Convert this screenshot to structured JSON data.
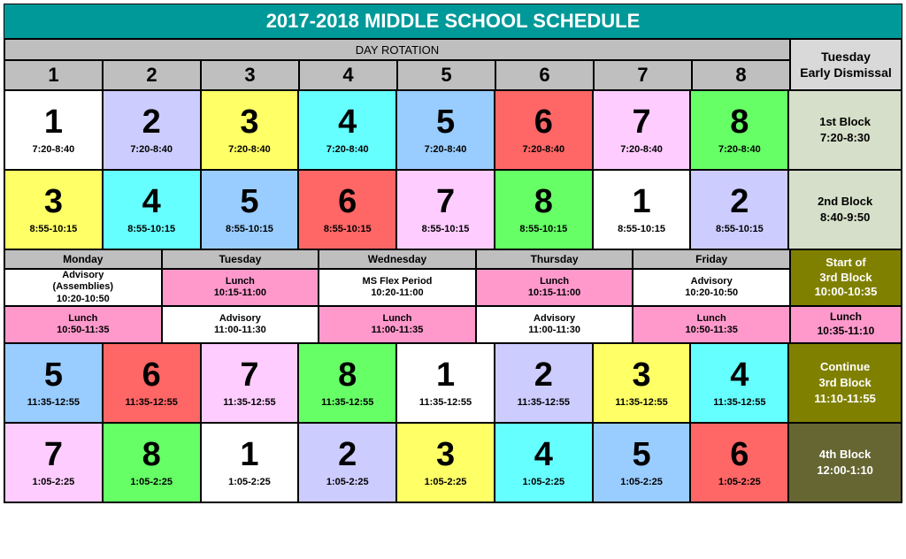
{
  "title": "2017-2018 MIDDLE SCHOOL SCHEDULE",
  "colors": {
    "teal": "#009999",
    "headerGray": "#bfbfbf",
    "lightGray": "#d9d9d9",
    "blockGray": "#e6e6e6",
    "white": "#ffffff",
    "yellow": "#ffff66",
    "lavender": "#ccccff",
    "lightBlue": "#99ccff",
    "cyan": "#66ffff",
    "coral": "#ff6666",
    "lightPink": "#ffccff",
    "green": "#66ff66",
    "pink": "#ff99cc",
    "olive": "#808000",
    "oliveDark": "#666633",
    "greenGray": "#d6dfc9"
  },
  "dayRotationLabel": "DAY ROTATION",
  "dayHeaders": [
    "1",
    "2",
    "3",
    "4",
    "5",
    "6",
    "7",
    "8"
  ],
  "tuesdayHeader": [
    "Tuesday",
    "Early Dismissal"
  ],
  "row1": {
    "cells": [
      {
        "num": "1",
        "time": "7:20-8:40",
        "bg": "white"
      },
      {
        "num": "2",
        "time": "7:20-8:40",
        "bg": "lavender"
      },
      {
        "num": "3",
        "time": "7:20-8:40",
        "bg": "yellow"
      },
      {
        "num": "4",
        "time": "7:20-8:40",
        "bg": "cyan"
      },
      {
        "num": "5",
        "time": "7:20-8:40",
        "bg": "lightBlue"
      },
      {
        "num": "6",
        "time": "7:20-8:40",
        "bg": "coral"
      },
      {
        "num": "7",
        "time": "7:20-8:40",
        "bg": "lightPink"
      },
      {
        "num": "8",
        "time": "7:20-8:40",
        "bg": "green"
      }
    ],
    "side": {
      "l1": "1st Block",
      "l2": "7:20-8:30",
      "bg": "greenGray"
    }
  },
  "row2": {
    "cells": [
      {
        "num": "3",
        "time": "8:55-10:15",
        "bg": "yellow"
      },
      {
        "num": "4",
        "time": "8:55-10:15",
        "bg": "cyan"
      },
      {
        "num": "5",
        "time": "8:55-10:15",
        "bg": "lightBlue"
      },
      {
        "num": "6",
        "time": "8:55-10:15",
        "bg": "coral"
      },
      {
        "num": "7",
        "time": "8:55-10:15",
        "bg": "lightPink"
      },
      {
        "num": "8",
        "time": "8:55-10:15",
        "bg": "green"
      },
      {
        "num": "1",
        "time": "8:55-10:15",
        "bg": "white"
      },
      {
        "num": "2",
        "time": "8:55-10:15",
        "bg": "lavender"
      }
    ],
    "side": {
      "l1": "2nd Block",
      "l2": "8:40-9:50",
      "bg": "greenGray"
    }
  },
  "weekdays": [
    "Monday",
    "Tuesday",
    "Wednesday",
    "Thursday",
    "Friday"
  ],
  "midRow1": [
    {
      "l1": "Advisory",
      "l2": "(Assemblies)",
      "l3": "10:20-10:50",
      "bg": "white"
    },
    {
      "l1": "Lunch",
      "l2": "10:15-11:00",
      "bg": "pink"
    },
    {
      "l1": "MS Flex Period",
      "l2": "10:20-11:00",
      "bg": "white"
    },
    {
      "l1": "Lunch",
      "l2": "10:15-11:00",
      "bg": "pink"
    },
    {
      "l1": "Advisory",
      "l2": "10:20-10:50",
      "bg": "white"
    }
  ],
  "midSide1": {
    "l1": "Start of",
    "l2": "3rd Block",
    "l3": "10:00-10:35",
    "bg": "olive"
  },
  "midRow2": [
    {
      "l1": "Lunch",
      "l2": "10:50-11:35",
      "bg": "pink"
    },
    {
      "l1": "Advisory",
      "l2": "11:00-11:30",
      "bg": "white"
    },
    {
      "l1": "Lunch",
      "l2": "11:00-11:35",
      "bg": "pink"
    },
    {
      "l1": "Advisory",
      "l2": "11:00-11:30",
      "bg": "white"
    },
    {
      "l1": "Lunch",
      "l2": "10:50-11:35",
      "bg": "pink"
    }
  ],
  "midSide2": {
    "l1": "Lunch",
    "l2": "10:35-11:10",
    "bg": "pink"
  },
  "row3": {
    "cells": [
      {
        "num": "5",
        "time": "11:35-12:55",
        "bg": "lightBlue"
      },
      {
        "num": "6",
        "time": "11:35-12:55",
        "bg": "coral"
      },
      {
        "num": "7",
        "time": "11:35-12:55",
        "bg": "lightPink"
      },
      {
        "num": "8",
        "time": "11:35-12:55",
        "bg": "green"
      },
      {
        "num": "1",
        "time": "11:35-12:55",
        "bg": "white"
      },
      {
        "num": "2",
        "time": "11:35-12:55",
        "bg": "lavender"
      },
      {
        "num": "3",
        "time": "11:35-12:55",
        "bg": "yellow"
      },
      {
        "num": "4",
        "time": "11:35-12:55",
        "bg": "cyan"
      }
    ],
    "side": {
      "l1": "Continue",
      "l2": "3rd Block",
      "l3": "11:10-11:55",
      "bg": "olive",
      "fg": "#ffffff"
    }
  },
  "row4": {
    "cells": [
      {
        "num": "7",
        "time": "1:05-2:25",
        "bg": "lightPink"
      },
      {
        "num": "8",
        "time": "1:05-2:25",
        "bg": "green"
      },
      {
        "num": "1",
        "time": "1:05-2:25",
        "bg": "white"
      },
      {
        "num": "2",
        "time": "1:05-2:25",
        "bg": "lavender"
      },
      {
        "num": "3",
        "time": "1:05-2:25",
        "bg": "yellow"
      },
      {
        "num": "4",
        "time": "1:05-2:25",
        "bg": "cyan"
      },
      {
        "num": "5",
        "time": "1:05-2:25",
        "bg": "lightBlue"
      },
      {
        "num": "6",
        "time": "1:05-2:25",
        "bg": "coral"
      }
    ],
    "side": {
      "l1": "4th Block",
      "l2": "12:00-1:10",
      "bg": "oliveDark",
      "fg": "#ffffff"
    }
  }
}
